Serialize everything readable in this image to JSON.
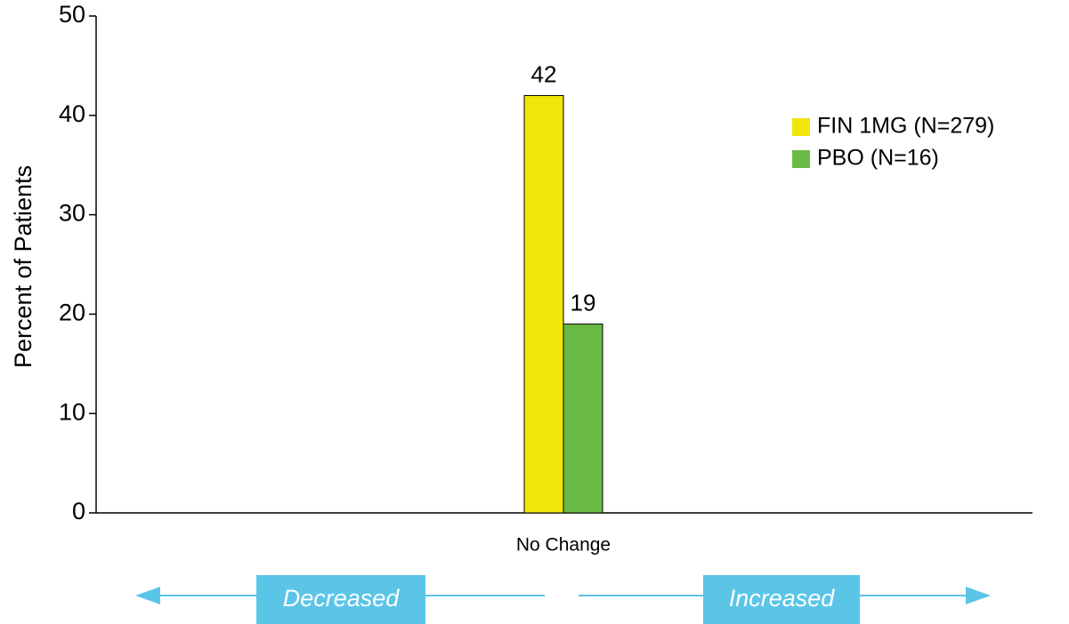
{
  "chart_data": {
    "type": "bar",
    "ylabel": "Percent of Patients",
    "categories": [
      "No Change"
    ],
    "series": [
      {
        "name": "FIN 1MG (N=279)",
        "color": "#f0e60a",
        "values": [
          42
        ]
      },
      {
        "name": "PBO (N=16)",
        "color": "#6abb45",
        "values": [
          19
        ]
      }
    ],
    "ylim": [
      0,
      50
    ],
    "yticks": [
      0,
      10,
      20,
      30,
      40,
      50
    ],
    "legend": "upper right",
    "annotations": [
      "Decreased",
      "Increased"
    ]
  }
}
